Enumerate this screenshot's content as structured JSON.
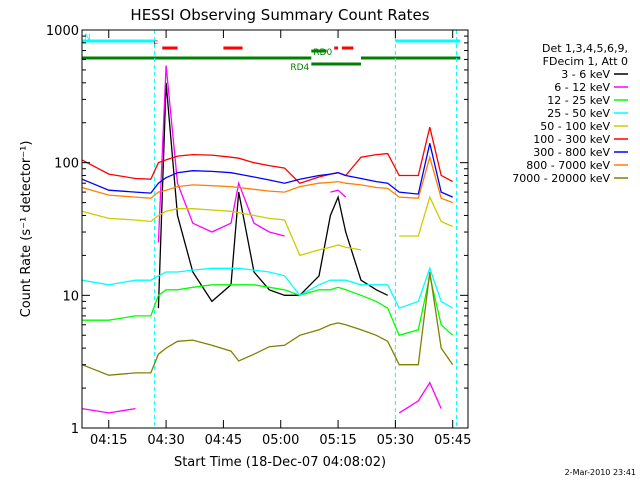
{
  "chart_data": {
    "type": "line",
    "title": "HESSI Observing Summary Count Rates",
    "xlabel": "Start Time (18-Dec-07 04:08:02)",
    "ylabel": "Count Rate (s⁻¹ detector⁻¹)",
    "y_scale": "log",
    "ylim": [
      1,
      1000
    ],
    "xlim": [
      "04:08",
      "05:49"
    ],
    "x_ticks": [
      "04:15",
      "04:30",
      "04:45",
      "05:00",
      "05:15",
      "05:30",
      "05:45"
    ],
    "y_ticks": [
      "1",
      "10",
      "100",
      "1000"
    ],
    "grid": false,
    "legend_position": "right",
    "legend_header": [
      "Det 1,3,4,5,6,9,",
      "FDecim 1, Att 0"
    ],
    "timestamp": "2-Mar-2010 23:41",
    "series": [
      {
        "name": "3 - 6 keV",
        "color": "#000000",
        "x": [
          "04:08",
          "04:15",
          "04:22",
          "04:26",
          "04:28",
          "04:30",
          "04:33",
          "04:37",
          "04:42",
          "04:47",
          "04:49",
          "04:53",
          "04:57",
          "05:01",
          "05:05",
          "05:10",
          "05:13",
          "05:15",
          "05:17",
          "05:21",
          "05:25",
          "05:28",
          "05:31",
          "05:36",
          "05:39",
          "05:42",
          "05:45"
        ],
        "y": [
          null,
          null,
          null,
          null,
          8,
          400,
          40,
          15,
          9,
          12,
          60,
          15,
          11,
          10,
          10,
          14,
          40,
          55,
          30,
          13,
          11,
          10,
          null,
          null,
          null,
          null,
          null
        ]
      },
      {
        "name": "6 - 12 keV",
        "color": "#ff00ff",
        "x": [
          "04:08",
          "04:15",
          "04:22",
          "04:26",
          "04:28",
          "04:30",
          "04:33",
          "04:37",
          "04:42",
          "04:47",
          "04:49",
          "04:53",
          "04:57",
          "05:01",
          "05:05",
          "05:10",
          "05:13",
          "05:15",
          "05:17",
          "05:21",
          "05:25",
          "05:28",
          "05:31",
          "05:36",
          "05:39",
          "05:42",
          "05:45"
        ],
        "y": [
          1.4,
          1.3,
          1.4,
          null,
          25,
          540,
          70,
          35,
          30,
          35,
          70,
          35,
          30,
          28,
          null,
          null,
          60,
          62,
          55,
          null,
          null,
          null,
          1.3,
          1.6,
          2.2,
          1.4,
          null
        ]
      },
      {
        "name": "12 - 25 keV",
        "color": "#00ff00",
        "x": [
          "04:08",
          "04:15",
          "04:22",
          "04:26",
          "04:28",
          "04:30",
          "04:33",
          "04:37",
          "04:42",
          "04:47",
          "04:49",
          "04:53",
          "04:57",
          "05:01",
          "05:05",
          "05:10",
          "05:13",
          "05:15",
          "05:17",
          "05:21",
          "05:25",
          "05:28",
          "05:31",
          "05:36",
          "05:39",
          "05:42",
          "05:45"
        ],
        "y": [
          6.5,
          6.5,
          7,
          7,
          10,
          11,
          11,
          11.5,
          12,
          12,
          12,
          12,
          11.5,
          11,
          10,
          11,
          11,
          11.5,
          11,
          10,
          9,
          8,
          5,
          5.5,
          14,
          6,
          5
        ]
      },
      {
        "name": "25 - 50 keV",
        "color": "#00ffff",
        "x": [
          "04:08",
          "04:15",
          "04:22",
          "04:26",
          "04:28",
          "04:30",
          "04:33",
          "04:37",
          "04:42",
          "04:47",
          "04:49",
          "04:53",
          "04:57",
          "05:01",
          "05:05",
          "05:10",
          "05:13",
          "05:15",
          "05:17",
          "05:21",
          "05:25",
          "05:28",
          "05:31",
          "05:36",
          "05:39",
          "05:42",
          "05:45"
        ],
        "y": [
          13,
          12,
          13,
          13,
          14,
          15,
          15,
          15.5,
          16,
          16,
          16,
          15.5,
          15,
          14,
          10,
          12,
          13,
          13,
          13,
          12,
          12,
          12,
          8,
          9,
          16,
          9,
          8
        ]
      },
      {
        "name": "50 - 100 keV",
        "color": "#cccc00",
        "x": [
          "04:08",
          "04:15",
          "04:22",
          "04:26",
          "04:28",
          "04:30",
          "04:33",
          "04:37",
          "04:42",
          "04:47",
          "04:49",
          "04:53",
          "04:57",
          "05:01",
          "05:05",
          "05:10",
          "05:13",
          "05:15",
          "05:17",
          "05:21",
          "05:25",
          "05:28",
          "05:31",
          "05:36",
          "05:39",
          "05:42",
          "05:45"
        ],
        "y": [
          43,
          38,
          37,
          36,
          40,
          43,
          45,
          45,
          44,
          43,
          42,
          40,
          38,
          37,
          20,
          22,
          23,
          24,
          23,
          22,
          null,
          null,
          28,
          28,
          55,
          36,
          33
        ]
      },
      {
        "name": "100 - 300 keV",
        "color": "#ff0000",
        "x": [
          "04:08",
          "04:15",
          "04:22",
          "04:26",
          "04:28",
          "04:30",
          "04:33",
          "04:37",
          "04:42",
          "04:47",
          "04:49",
          "04:53",
          "04:57",
          "05:01",
          "05:05",
          "05:10",
          "05:13",
          "05:15",
          "05:17",
          "05:21",
          "05:25",
          "05:28",
          "05:31",
          "05:36",
          "05:39",
          "05:42",
          "05:45"
        ],
        "y": [
          105,
          82,
          76,
          75,
          100,
          105,
          112,
          115,
          114,
          110,
          108,
          100,
          95,
          91,
          70,
          78,
          82,
          84,
          80,
          110,
          115,
          117,
          80,
          80,
          185,
          80,
          72
        ]
      },
      {
        "name": "300 - 800 keV",
        "color": "#0000ff",
        "x": [
          "04:08",
          "04:15",
          "04:22",
          "04:26",
          "04:28",
          "04:30",
          "04:33",
          "04:37",
          "04:42",
          "04:47",
          "04:49",
          "04:53",
          "04:57",
          "05:01",
          "05:05",
          "05:10",
          "05:13",
          "05:15",
          "05:17",
          "05:21",
          "05:25",
          "05:28",
          "05:31",
          "05:36",
          "05:39",
          "05:42",
          "05:45"
        ],
        "y": [
          75,
          62,
          60,
          59,
          70,
          77,
          84,
          87,
          86,
          84,
          82,
          78,
          74,
          70,
          75,
          80,
          82,
          84,
          80,
          76,
          72,
          70,
          60,
          58,
          140,
          60,
          55
        ]
      },
      {
        "name": "800 - 7000 keV",
        "color": "#ff8000",
        "x": [
          "04:08",
          "04:15",
          "04:22",
          "04:26",
          "04:28",
          "04:30",
          "04:33",
          "04:37",
          "04:42",
          "04:47",
          "04:49",
          "04:53",
          "04:57",
          "05:01",
          "05:05",
          "05:10",
          "05:13",
          "05:15",
          "05:17",
          "05:21",
          "05:25",
          "05:28",
          "05:31",
          "05:36",
          "05:39",
          "05:42",
          "05:45"
        ],
        "y": [
          65,
          57,
          55,
          54,
          60,
          62,
          66,
          68,
          67,
          66,
          65,
          63,
          61,
          60,
          66,
          70,
          71,
          72,
          70,
          68,
          65,
          64,
          55,
          54,
          110,
          54,
          50
        ]
      },
      {
        "name": "7000 - 20000 keV",
        "color": "#808000",
        "x": [
          "04:08",
          "04:15",
          "04:22",
          "04:26",
          "04:28",
          "04:30",
          "04:33",
          "04:37",
          "04:42",
          "04:47",
          "04:49",
          "04:53",
          "04:57",
          "05:01",
          "05:05",
          "05:10",
          "05:13",
          "05:15",
          "05:17",
          "05:21",
          "05:25",
          "05:28",
          "05:31",
          "05:36",
          "05:39",
          "05:42",
          "05:45"
        ],
        "y": [
          3,
          2.5,
          2.6,
          2.6,
          3.6,
          4,
          4.5,
          4.6,
          4.2,
          3.8,
          3.2,
          3.6,
          4.1,
          4.2,
          5,
          5.5,
          6,
          6.2,
          6,
          5.5,
          5,
          4.5,
          3,
          3,
          15,
          4,
          3
        ]
      }
    ],
    "flags": [
      {
        "label": "N",
        "color": "#00ffff",
        "x_start": "04:08",
        "x_end": "04:27"
      },
      {
        "label": "",
        "color": "#00ffff",
        "x_start": "05:30",
        "x_end": "05:47"
      },
      {
        "label": "F",
        "color": "#ff0000",
        "x_start": "04:29",
        "x_end": "04:33"
      },
      {
        "label": "",
        "color": "#ff0000",
        "x_start": "04:45",
        "x_end": "04:50"
      },
      {
        "label": "",
        "color": "#ff0000",
        "x_start": "05:14",
        "x_end": "05:15"
      },
      {
        "label": "",
        "color": "#ff0000",
        "x_start": "05:16",
        "x_end": "05:19"
      },
      {
        "label": "RD0",
        "color": "#008000",
        "x_start": "05:08",
        "x_end": "05:12"
      },
      {
        "label": "",
        "color": "#008000",
        "x_start": "04:08",
        "x_end": "05:08"
      },
      {
        "label": "",
        "color": "#008000",
        "x_start": "05:21",
        "x_end": "05:47"
      },
      {
        "label": "RD4",
        "color": "#008000",
        "x_start": "05:08",
        "x_end": "05:21"
      }
    ],
    "markers": [
      {
        "color": "#00ffff",
        "x": "04:08"
      },
      {
        "color": "#00ffff",
        "x": "04:27"
      },
      {
        "color": "#00ffff",
        "x": "05:30"
      },
      {
        "color": "#00ffff",
        "x": "05:46"
      }
    ]
  }
}
